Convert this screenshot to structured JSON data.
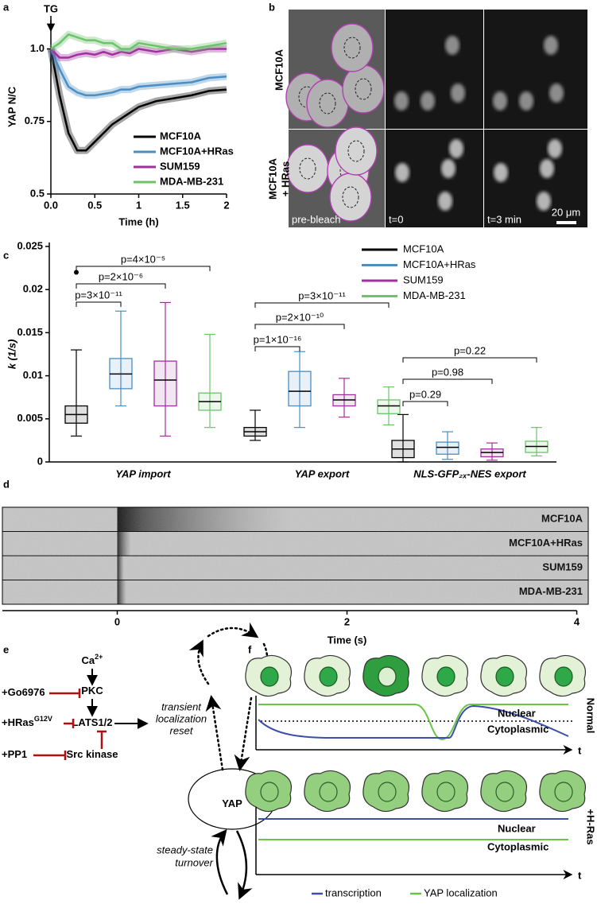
{
  "chart_data": [
    {
      "type": "line",
      "panel": "a",
      "x": [
        0,
        0.1,
        0.2,
        0.3,
        0.4,
        0.5,
        0.6,
        0.7,
        0.8,
        0.9,
        1.0,
        1.2,
        1.4,
        1.6,
        1.8,
        2.0
      ],
      "series": [
        {
          "name": "MCF10A",
          "color": "#000000",
          "values": [
            1.0,
            0.84,
            0.71,
            0.65,
            0.65,
            0.68,
            0.71,
            0.74,
            0.76,
            0.78,
            0.8,
            0.82,
            0.83,
            0.84,
            0.855,
            0.86
          ]
        },
        {
          "name": "MCF10A+HRas",
          "color": "#4a8ec2",
          "values": [
            1.0,
            0.93,
            0.87,
            0.85,
            0.84,
            0.84,
            0.845,
            0.85,
            0.86,
            0.86,
            0.87,
            0.875,
            0.88,
            0.885,
            0.9,
            0.905
          ]
        },
        {
          "name": "SUM159",
          "color": "#a0309e",
          "values": [
            1.0,
            0.97,
            0.97,
            0.98,
            0.985,
            0.98,
            0.99,
            0.98,
            0.99,
            0.985,
            1.0,
            0.99,
            1.0,
            0.99,
            1.0,
            1.0
          ]
        },
        {
          "name": "MDA-MB-231",
          "color": "#6cc46a",
          "values": [
            1.0,
            1.02,
            1.05,
            1.04,
            1.03,
            1.03,
            1.02,
            1.02,
            1.0,
            1.0,
            1.02,
            1.01,
            1.0,
            1.0,
            1.01,
            1.02
          ]
        }
      ],
      "xlim": [
        0,
        2
      ],
      "ylim": [
        0.5,
        1.1
      ],
      "xticks": [
        {
          "value": 0,
          "label": "0.0"
        },
        0.5,
        1,
        1.5,
        2
      ],
      "yticks": [
        0.5,
        0.75,
        {
          "value": 1,
          "label": "1.0"
        }
      ],
      "xlabel": "Time (h)",
      "ylabel": "YAP N/C",
      "annotation": "TG",
      "legend": "lower right"
    },
    {
      "type": "box",
      "panel": "c",
      "categories": [
        "YAP import",
        "YAP export",
        "NLS-GFP₂ₓ-NES export"
      ],
      "series": [
        {
          "name": "MCF10A",
          "color": "#000000",
          "q1": [
            0.0045,
            0.003,
            0.0005
          ],
          "median": [
            0.0055,
            0.0035,
            0.0015
          ],
          "q3": [
            0.0065,
            0.004,
            0.0025
          ],
          "whislo": [
            0.003,
            0.0025,
            0
          ],
          "whishi": [
            0.013,
            0.006,
            0.0055
          ],
          "outliers": [
            [
              0.022
            ],
            [],
            []
          ]
        },
        {
          "name": "MCF10A+HRas",
          "color": "#4a8ec2",
          "q1": [
            0.0085,
            0.0065,
            0.0009
          ],
          "median": [
            0.0102,
            0.0082,
            0.0017
          ],
          "q3": [
            0.012,
            0.0105,
            0.0023
          ],
          "whislo": [
            0.0065,
            0.004,
            0.0003
          ],
          "whishi": [
            0.0175,
            0.0128,
            0.0035
          ],
          "outliers": [
            [],
            [],
            []
          ]
        },
        {
          "name": "SUM159",
          "color": "#a0309e",
          "q1": [
            0.0065,
            0.0065,
            0.0006
          ],
          "median": [
            0.0095,
            0.0072,
            0.0011
          ],
          "q3": [
            0.0117,
            0.0078,
            0.0015
          ],
          "whislo": [
            0.003,
            0.0052,
            0.0002
          ],
          "whishi": [
            0.0185,
            0.0097,
            0.0022
          ],
          "outliers": [
            [],
            [],
            []
          ]
        },
        {
          "name": "MDA-MB-231",
          "color": "#6cc46a",
          "q1": [
            0.006,
            0.0056,
            0.0011
          ],
          "median": [
            0.007,
            0.0065,
            0.0018
          ],
          "q3": [
            0.008,
            0.0072,
            0.0024
          ],
          "whislo": [
            0.004,
            0.0043,
            0.0007
          ],
          "whishi": [
            0.0148,
            0.0087,
            0.004
          ],
          "outliers": [
            [],
            [],
            []
          ]
        }
      ],
      "comparisons": [
        [
          "p=3×10⁻¹¹",
          "p=2×10⁻⁶",
          "p=4×10⁻⁵"
        ],
        [
          "p=1×10⁻¹⁶",
          "p=2×10⁻¹⁰",
          "p=3×10⁻¹¹"
        ],
        [
          "p=0.29",
          "p=0.98",
          "p=0.22"
        ]
      ],
      "ylim": [
        0,
        0.025
      ],
      "yticks": [
        0,
        0.005,
        0.01,
        0.015,
        0.02,
        0.025
      ],
      "ylabel": "k (1/s)",
      "legend": "upper right"
    }
  ],
  "panel_b": {
    "panel": "b",
    "rows": [
      [
        "MCF10A"
      ],
      [
        "MCF10A",
        "+ HRas"
      ]
    ],
    "frames": [
      "pre-bleach",
      "t=0",
      "t=3 min"
    ],
    "scale_bar": "20 μm"
  },
  "panel_d": {
    "panel": "d",
    "rows": [
      "MCF10A",
      "MCF10A+HRas",
      "SUM159",
      "MDA-MB-231"
    ],
    "xlim": [
      -1,
      4.1
    ],
    "xticks": [
      0,
      2,
      4
    ],
    "xlabel": "Time (s)"
  },
  "panel_e": {
    "panel": "e",
    "nodes": [
      {
        "text": "Ca",
        "sup": "2+"
      },
      {
        "text": "PKC"
      },
      {
        "text": "LATS1/2"
      },
      {
        "text": "Src kinase"
      },
      {
        "text": "YAP"
      }
    ],
    "inhibitors": [
      {
        "text": "+Go6976"
      },
      {
        "text": "+HRas",
        "sup": "G12V"
      },
      {
        "text": "+PP1"
      }
    ],
    "notes": [
      [
        "transient",
        "localization",
        "reset"
      ],
      [
        "steady-state",
        "turnover"
      ]
    ]
  },
  "panel_f": {
    "panel": "f",
    "conditions": [
      "Normal",
      "+H-Ras"
    ],
    "compartments": [
      "Nuclear",
      "Cytoplasmic"
    ],
    "axis_label": "t",
    "legend": [
      {
        "name": "transcription",
        "color": "#3b4fa8"
      },
      {
        "name": "YAP localization",
        "color": "#6cc446"
      }
    ]
  }
}
